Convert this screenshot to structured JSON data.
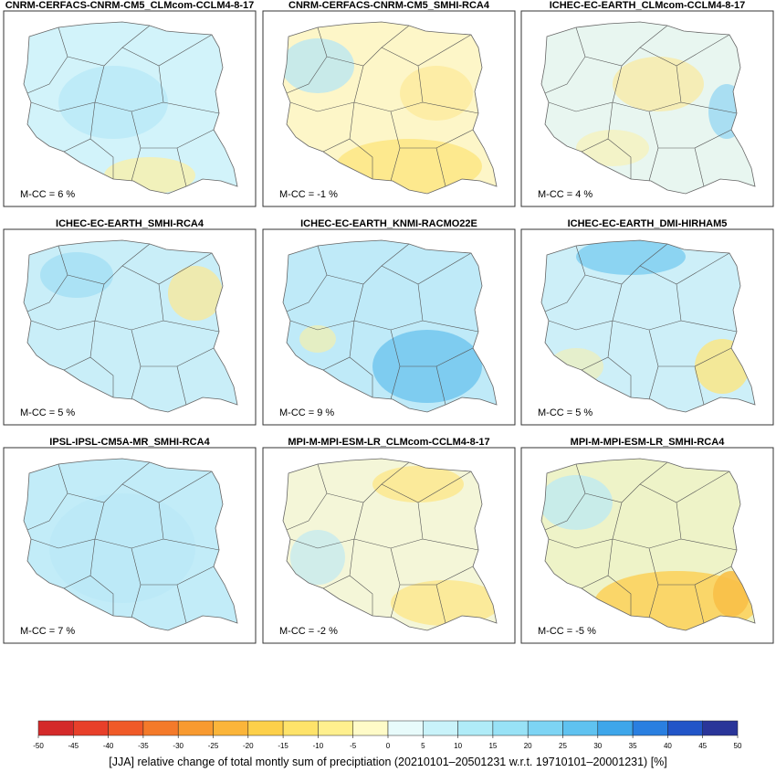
{
  "panels": [
    {
      "title": "CNRM-CERFACS-CNRM-CM5_CLMcom-CCLM4-8-17",
      "label": "M-CC = 6 %"
    },
    {
      "title": "CNRM-CERFACS-CNRM-CM5_SMHI-RCA4",
      "label": "M-CC = -1 %"
    },
    {
      "title": "ICHEC-EC-EARTH_CLMcom-CCLM4-8-17",
      "label": "M-CC = 4 %"
    },
    {
      "title": "ICHEC-EC-EARTH_SMHI-RCA4",
      "label": "M-CC = 5 %"
    },
    {
      "title": "ICHEC-EC-EARTH_KNMI-RACMO22E",
      "label": "M-CC = 9 %"
    },
    {
      "title": "ICHEC-EC-EARTH_DMI-HIRHAM5",
      "label": "M-CC = 5 %"
    },
    {
      "title": "IPSL-IPSL-CM5A-MR_SMHI-RCA4",
      "label": "M-CC = 7 %"
    },
    {
      "title": "MPI-M-MPI-ESM-LR_CLMcom-CCLM4-8-17",
      "label": "M-CC = -2 %"
    },
    {
      "title": "MPI-M-MPI-ESM-LR_SMHI-RCA4",
      "label": "M-CC = -5 %"
    }
  ],
  "colorbar": {
    "ticks": [
      -50,
      -45,
      -40,
      -35,
      -30,
      -25,
      -20,
      -15,
      -10,
      -5,
      0,
      5,
      10,
      15,
      20,
      25,
      30,
      35,
      40,
      45,
      50
    ],
    "colors": [
      "#d42a2a",
      "#e8402a",
      "#f05a28",
      "#f47a2a",
      "#f89a30",
      "#fbb53a",
      "#fdd04a",
      "#fee36a",
      "#fff08e",
      "#fffbc8",
      "#e8fbfb",
      "#c9f3fa",
      "#b0ecf8",
      "#98e2f6",
      "#7dd4f4",
      "#5fc2f0",
      "#3ea6ea",
      "#2a7fe0",
      "#2255c8",
      "#2a3599"
    ]
  },
  "caption": "[JJA] relative change of total montly sum of preciptiation (20210101–20501231 w.r.t. 19710101–20001231) [%]"
}
